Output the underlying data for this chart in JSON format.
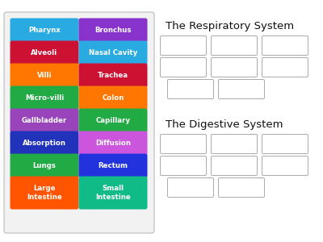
{
  "background": "#ffffff",
  "left_buttons": [
    {
      "text": "Pharynx",
      "color": "#29ABE2",
      "col": 0,
      "row": 0
    },
    {
      "text": "Bronchus",
      "color": "#8833CC",
      "col": 1,
      "row": 0
    },
    {
      "text": "Alveoli",
      "color": "#CC1133",
      "col": 0,
      "row": 1
    },
    {
      "text": "Nasal Cavity",
      "color": "#29ABE2",
      "col": 1,
      "row": 1
    },
    {
      "text": "Villi",
      "color": "#FF7700",
      "col": 0,
      "row": 2
    },
    {
      "text": "Trachea",
      "color": "#CC1133",
      "col": 1,
      "row": 2
    },
    {
      "text": "Micro-villi",
      "color": "#22AA44",
      "col": 0,
      "row": 3
    },
    {
      "text": "Colon",
      "color": "#FF7700",
      "col": 1,
      "row": 3
    },
    {
      "text": "Gallbladder",
      "color": "#9944BB",
      "col": 0,
      "row": 4
    },
    {
      "text": "Capillary",
      "color": "#22AA44",
      "col": 1,
      "row": 4
    },
    {
      "text": "Absorption",
      "color": "#2233BB",
      "col": 0,
      "row": 5
    },
    {
      "text": "Diffusion",
      "color": "#CC55DD",
      "col": 1,
      "row": 5
    },
    {
      "text": "Lungs",
      "color": "#22AA44",
      "col": 0,
      "row": 6
    },
    {
      "text": "Rectum",
      "color": "#2233DD",
      "col": 1,
      "row": 6
    },
    {
      "text": "Large\nIntestine",
      "color": "#FF5500",
      "col": 0,
      "row": 7
    },
    {
      "text": "Small\nIntestine",
      "color": "#11BB88",
      "col": 1,
      "row": 7
    }
  ],
  "resp_title": "The Respiratory System",
  "dig_title": "The Digestive System",
  "resp_row_counts": [
    3,
    3,
    2
  ],
  "dig_row_counts": [
    3,
    3,
    2
  ]
}
